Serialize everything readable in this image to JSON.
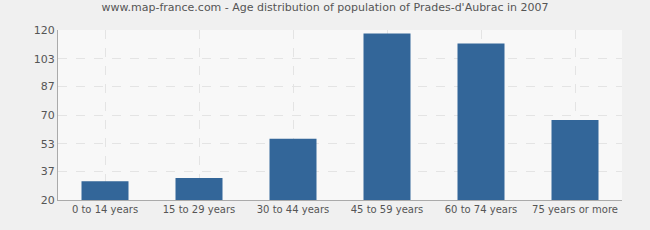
{
  "chart_data": {
    "type": "bar",
    "title": "www.map-france.com - Age distribution of population of Prades-d'Aubrac in 2007",
    "categories": [
      "0 to 14 years",
      "15 to 29 years",
      "30 to 44 years",
      "45 to 59 years",
      "60 to 74 years",
      "75 years or more"
    ],
    "values": [
      31,
      33,
      56,
      118,
      112,
      67
    ],
    "color": "#336699",
    "ylim": [
      20,
      120
    ],
    "yticks": [
      20,
      37,
      53,
      70,
      87,
      103,
      120
    ],
    "grid": true
  }
}
